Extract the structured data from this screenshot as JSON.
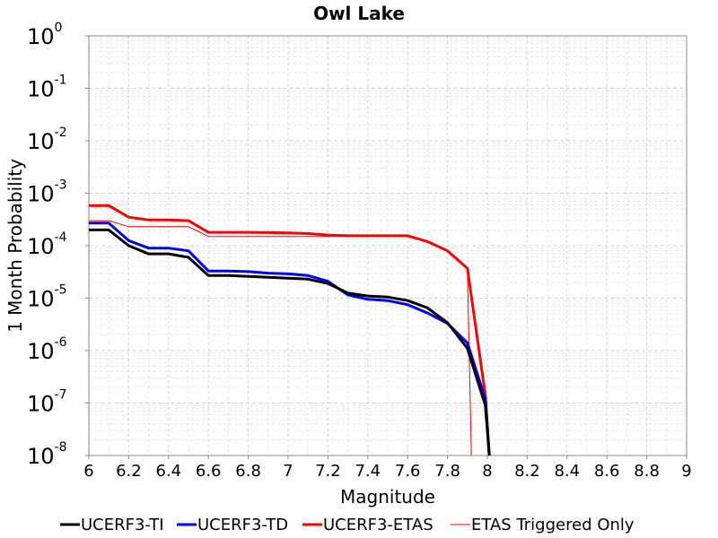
{
  "chart_data": {
    "type": "line",
    "title": "Owl Lake",
    "xlabel": "Magnitude",
    "ylabel": "1 Month Probability",
    "xlim": [
      6,
      9
    ],
    "ylim": [
      1e-08,
      1
    ],
    "y_scale": "log",
    "grid": true,
    "legend_position": "bottom",
    "x_ticks": [
      "6",
      "6.2",
      "6.4",
      "6.6",
      "6.8",
      "7",
      "7.2",
      "7.4",
      "7.6",
      "7.8",
      "8",
      "8.2",
      "8.4",
      "8.6",
      "8.8",
      "9"
    ],
    "y_ticks": [
      {
        "base": "10",
        "exp": "0"
      },
      {
        "base": "10",
        "exp": "-1"
      },
      {
        "base": "10",
        "exp": "-2"
      },
      {
        "base": "10",
        "exp": "-3"
      },
      {
        "base": "10",
        "exp": "-4"
      },
      {
        "base": "10",
        "exp": "-5"
      },
      {
        "base": "10",
        "exp": "-6"
      },
      {
        "base": "10",
        "exp": "-7"
      },
      {
        "base": "10",
        "exp": "-8"
      }
    ],
    "series": [
      {
        "name": "UCERF3-TI",
        "color": "#000000",
        "width": 3,
        "x": [
          6.0,
          6.1,
          6.2,
          6.3,
          6.4,
          6.5,
          6.6,
          6.7,
          6.8,
          6.9,
          7.0,
          7.1,
          7.2,
          7.3,
          7.4,
          7.5,
          7.6,
          7.7,
          7.8,
          7.9,
          7.99,
          8.01
        ],
        "y": [
          0.0002,
          0.0002,
          0.0001,
          7e-05,
          7e-05,
          6e-05,
          2.7e-05,
          2.7e-05,
          2.6e-05,
          2.5e-05,
          2.4e-05,
          2.3e-05,
          1.9e-05,
          1.25e-05,
          1.1e-05,
          1.05e-05,
          9e-06,
          6.5e-06,
          3.4e-06,
          1.1e-06,
          9e-08,
          1e-08
        ]
      },
      {
        "name": "UCERF3-TD",
        "color": "#0000ff",
        "width": 3,
        "x": [
          6.0,
          6.1,
          6.2,
          6.3,
          6.4,
          6.5,
          6.6,
          6.7,
          6.8,
          6.9,
          7.0,
          7.1,
          7.2,
          7.3,
          7.4,
          7.5,
          7.6,
          7.7,
          7.8,
          7.9,
          7.99,
          8.01
        ],
        "y": [
          0.00027,
          0.00027,
          0.000125,
          9e-05,
          9e-05,
          8e-05,
          3.3e-05,
          3.3e-05,
          3.2e-05,
          3e-05,
          2.9e-05,
          2.7e-05,
          2.1e-05,
          1.15e-05,
          9.5e-06,
          9e-06,
          7.5e-06,
          5.2e-06,
          3.3e-06,
          1.4e-06,
          1.2e-07,
          1e-08
        ]
      },
      {
        "name": "UCERF3-ETAS",
        "color": "#ff0000",
        "width": 3,
        "x": [
          6.0,
          6.1,
          6.2,
          6.3,
          6.4,
          6.5,
          6.6,
          6.7,
          6.8,
          6.9,
          7.0,
          7.1,
          7.2,
          7.3,
          7.4,
          7.5,
          7.6,
          7.7,
          7.8,
          7.9,
          7.99,
          8.01
        ],
        "y": [
          0.00058,
          0.00058,
          0.00035,
          0.00031,
          0.00031,
          0.0003,
          0.00018,
          0.00018,
          0.00018,
          0.000178,
          0.000175,
          0.00017,
          0.00016,
          0.000155,
          0.000155,
          0.000155,
          0.000155,
          0.00012,
          8e-05,
          3.7e-05,
          1.4e-07,
          1e-08
        ]
      },
      {
        "name": "ETAS Triggered Only",
        "color": "#ff0000",
        "width": 1,
        "x": [
          6.0,
          6.1,
          6.2,
          6.3,
          6.4,
          6.5,
          6.6,
          6.7,
          6.8,
          6.9,
          7.0,
          7.1,
          7.2,
          7.3,
          7.4,
          7.5,
          7.6,
          7.7,
          7.8,
          7.9,
          7.92
        ],
        "y": [
          0.0003,
          0.0003,
          0.00023,
          0.00023,
          0.00023,
          0.00023,
          0.00015,
          0.00015,
          0.00015,
          0.00015,
          0.00015,
          0.00015,
          0.00015,
          0.00015,
          0.00015,
          0.00015,
          0.00015,
          0.00012,
          8e-05,
          3.7e-05,
          1e-08
        ]
      }
    ]
  }
}
